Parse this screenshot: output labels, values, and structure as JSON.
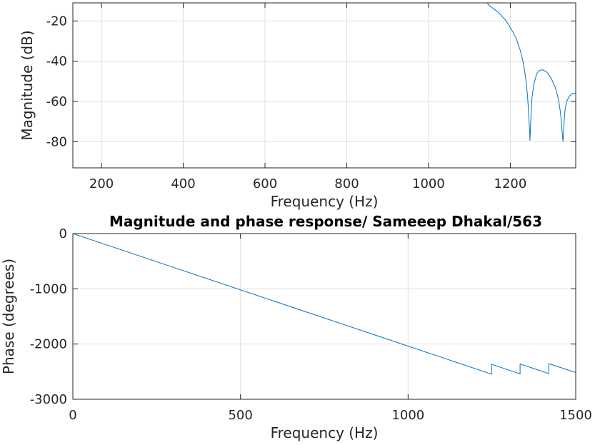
{
  "chart_data": [
    {
      "type": "line",
      "title": "",
      "xlabel": "Frequency (Hz)",
      "ylabel": "Magnitude (dB)",
      "xlim": [
        130,
        1360
      ],
      "ylim": [
        -93,
        -11
      ],
      "xticks": [
        200,
        400,
        600,
        800,
        1000,
        1200
      ],
      "yticks": [
        -80,
        -60,
        -40,
        -20
      ],
      "grid": true,
      "series": [
        {
          "color": "#0072bd",
          "x": [
            1130,
            1150,
            1170,
            1190,
            1205,
            1215,
            1225,
            1232,
            1238,
            1242,
            1245,
            1247,
            1248,
            1250,
            1253,
            1258,
            1265,
            1272,
            1280,
            1290,
            1300,
            1310,
            1318,
            1323,
            1326,
            1328,
            1329,
            1331,
            1334,
            1338,
            1344,
            1352,
            1360
          ],
          "y": [
            -8,
            -12.6,
            -15.5,
            -20,
            -25,
            -29,
            -35,
            -41,
            -49,
            -57,
            -66,
            -74,
            -79.5,
            -70,
            -58,
            -51,
            -46,
            -44.5,
            -44.3,
            -45.5,
            -48.5,
            -53,
            -59,
            -66,
            -73,
            -78,
            -80,
            -72,
            -64,
            -60,
            -57.5,
            -56,
            -55.8
          ]
        }
      ]
    },
    {
      "type": "line",
      "title": "Magnitude and phase response/ Sameeep Dhakal/563",
      "xlabel": "Frequency (Hz)",
      "ylabel": "Phase (degrees)",
      "xlim": [
        0,
        1500
      ],
      "ylim": [
        -3000,
        0
      ],
      "xticks": [
        0,
        500,
        1000,
        1500
      ],
      "yticks": [
        -3000,
        -2000,
        -1000,
        0
      ],
      "grid": true,
      "series": [
        {
          "color": "#0072bd",
          "x": [
            0,
            1249,
            1249,
            1334,
            1334,
            1420,
            1420,
            1500
          ],
          "y": [
            0,
            -2545,
            -2365,
            -2540,
            -2360,
            -2535,
            -2355,
            -2515
          ]
        }
      ]
    }
  ]
}
